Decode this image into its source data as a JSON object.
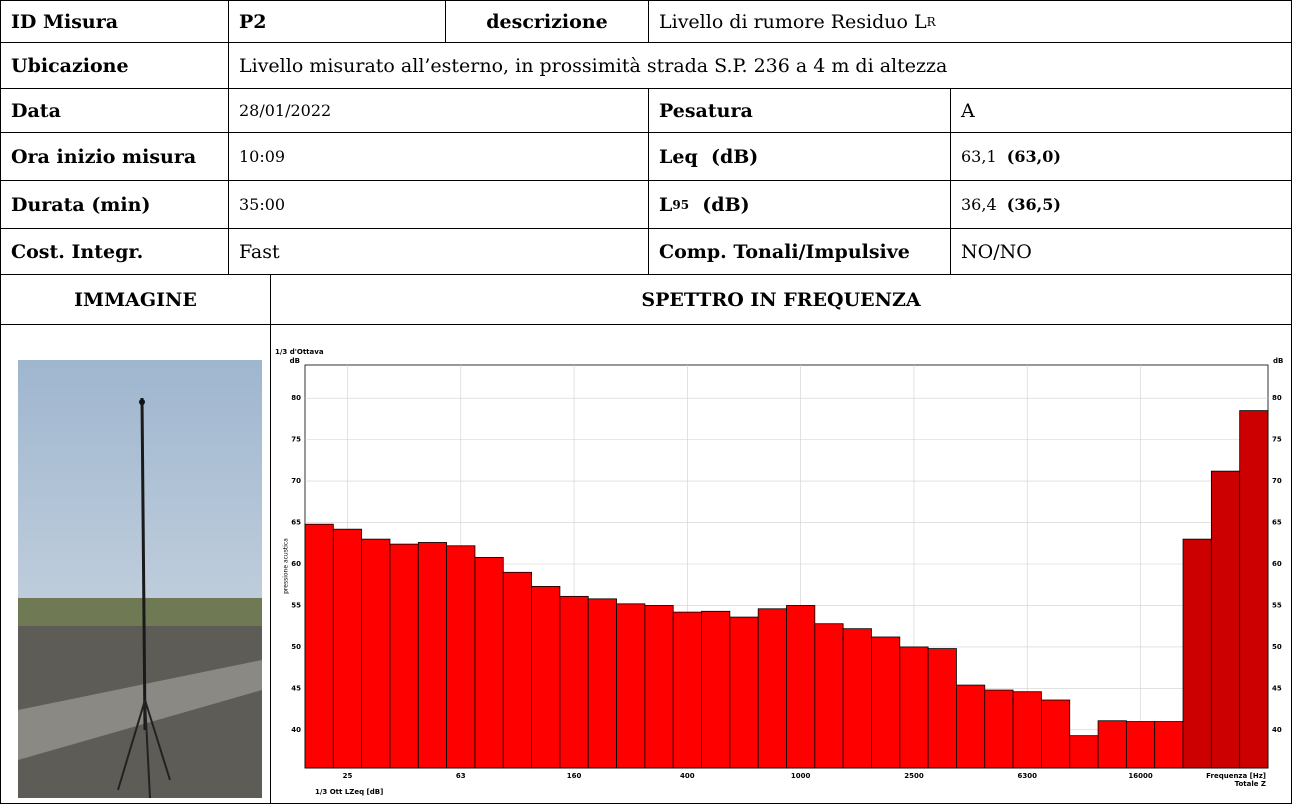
{
  "table": {
    "rows": [
      [
        "ID Misura",
        "P2",
        "descrizione",
        {
          "text": "Livello di rumore Residuo L",
          "sub": "R"
        }
      ],
      [
        "Ubicazione",
        "Livello misurato all’esterno, in prossimità strada S.P. 236 a 4 m di altezza"
      ],
      [
        "Data",
        "28/01/2022",
        "Pesatura",
        "A"
      ],
      [
        "Ora inizio misura",
        "10:09",
        "Leq  (dB)",
        {
          "text": "63,1",
          "bold": "(63,0)"
        }
      ],
      [
        "Durata (min)",
        "35:00",
        {
          "text": "L",
          "sub": "95",
          "after": "  (dB)"
        },
        {
          "text": "36,4",
          "bold": "(36,5)"
        }
      ],
      [
        "Cost. Integr.",
        "Fast",
        "Comp. Tonali/Impulsive",
        "NO/NO"
      ],
      [
        "IMMAGINE",
        "SPETTRO IN FREQUENZA"
      ]
    ]
  },
  "chart_data": {
    "type": "bar",
    "title": "1/3 d'Ottava",
    "y_unit": "dB",
    "ylabel": "pressione acustica",
    "xlabel": "Frequenza [Hz]",
    "total_label": "Totale Z",
    "footer": "1/3 Ott LZeq [dB]",
    "categories": [
      null,
      "25",
      null,
      null,
      null,
      "63",
      null,
      null,
      null,
      "160",
      null,
      null,
      null,
      "400",
      null,
      null,
      null,
      "1000",
      null,
      null,
      null,
      "2500",
      null,
      null,
      null,
      "6300",
      null,
      null,
      null,
      "16000",
      null,
      null,
      null,
      null
    ],
    "values": [
      64.8,
      64.2,
      63.0,
      62.4,
      62.6,
      62.2,
      60.8,
      59.0,
      57.3,
      56.1,
      55.8,
      55.2,
      55.0,
      54.2,
      54.3,
      53.6,
      54.6,
      55.0,
      52.8,
      52.2,
      51.2,
      50.0,
      49.8,
      45.4,
      44.8,
      44.6,
      43.6,
      39.3,
      41.1,
      41.0,
      41.0,
      63.0,
      71.2,
      78.5
    ],
    "colors": [
      "#ff0000",
      "#ff0000",
      "#ff0000",
      "#ff0000",
      "#ff0000",
      "#ff0000",
      "#ff0000",
      "#ff0000",
      "#ff0000",
      "#ff0000",
      "#ff0000",
      "#ff0000",
      "#ff0000",
      "#ff0000",
      "#ff0000",
      "#ff0000",
      "#ff0000",
      "#ff0000",
      "#ff0000",
      "#ff0000",
      "#ff0000",
      "#ff0000",
      "#ff0000",
      "#ff0000",
      "#ff0000",
      "#ff0000",
      "#ff0000",
      "#ff0000",
      "#ff0000",
      "#ff0000",
      "#ff0000",
      "#cc0000",
      "#cc0000",
      "#cc0000"
    ],
    "ylim": [
      35.4,
      84
    ],
    "yticks": [
      40,
      45,
      50,
      55,
      60,
      65,
      70,
      75,
      80
    ],
    "grid": true
  }
}
